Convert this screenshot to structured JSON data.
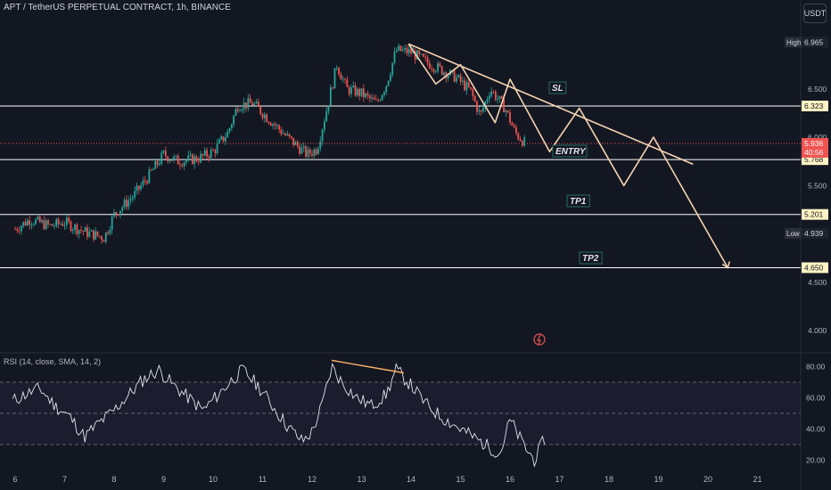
{
  "header": {
    "title": "APT / TetherUS PERPETUAL CONTRACT, 1h, BINANCE",
    "currency": "USDT"
  },
  "annotations": {
    "sl": "SL",
    "entry": "ENTRY",
    "tp1": "TP1",
    "tp2": "TP2",
    "high_label": "High",
    "low_label": "Low"
  },
  "rsi": {
    "title": "RSI (14, close, SMA, 14, 2)"
  },
  "colors": {
    "background": "#131722",
    "bull": "#26a69a",
    "bear": "#ef5350",
    "level_line": "#ffffff",
    "projection": "#f5d3b0",
    "rsi_line": "#e0e3eb",
    "rsi_divergence": "#ffb26b",
    "current_price": "#ef5350"
  },
  "chart_data": [
    {
      "type": "candlestick",
      "x_ticks": [
        "6",
        "7",
        "8",
        "9",
        "10",
        "11",
        "12",
        "13",
        "14",
        "15",
        "16",
        "17",
        "18",
        "19",
        "20",
        "21"
      ],
      "y_ticks": [
        "4.000",
        "4.500",
        "5.000",
        "5.500",
        "6.000",
        "6.500",
        "7.000"
      ],
      "ylim": [
        3.8,
        7.1
      ],
      "price_path": [
        [
          6.0,
          5.05
        ],
        [
          6.3,
          5.15
        ],
        [
          6.7,
          5.08
        ],
        [
          7.0,
          5.12
        ],
        [
          7.4,
          5.02
        ],
        [
          7.8,
          4.96
        ],
        [
          8.0,
          5.2
        ],
        [
          8.4,
          5.4
        ],
        [
          8.7,
          5.6
        ],
        [
          9.0,
          5.82
        ],
        [
          9.3,
          5.75
        ],
        [
          9.7,
          5.78
        ],
        [
          10.0,
          5.85
        ],
        [
          10.3,
          6.05
        ],
        [
          10.5,
          6.33
        ],
        [
          10.8,
          6.35
        ],
        [
          11.2,
          6.15
        ],
        [
          11.5,
          6.0
        ],
        [
          11.9,
          5.82
        ],
        [
          12.1,
          5.88
        ],
        [
          12.3,
          6.3
        ],
        [
          12.5,
          6.75
        ],
        [
          12.7,
          6.5
        ],
        [
          13.0,
          6.45
        ],
        [
          13.3,
          6.35
        ],
        [
          13.5,
          6.55
        ],
        [
          13.7,
          6.9
        ],
        [
          14.0,
          6.88
        ],
        [
          14.3,
          6.78
        ],
        [
          14.6,
          6.7
        ],
        [
          14.9,
          6.62
        ],
        [
          15.2,
          6.48
        ],
        [
          15.4,
          6.22
        ],
        [
          15.6,
          6.5
        ],
        [
          15.9,
          6.3
        ],
        [
          16.1,
          6.05
        ],
        [
          16.3,
          5.94
        ]
      ],
      "current_price": 5.936,
      "countdown": "40:56",
      "high": 6.965,
      "low": 4.939,
      "levels": [
        {
          "name": "SL",
          "price": 6.323,
          "label": "6.323"
        },
        {
          "name": "ENTRY",
          "price": 5.768,
          "label": "5.768"
        },
        {
          "name": "TP1",
          "price": 5.201,
          "label": "5.201"
        },
        {
          "name": "TP2",
          "price": 4.65,
          "label": "4.650"
        }
      ],
      "current_price_label": "5.936",
      "high_value_label": "6.965",
      "low_value_label": "4.939",
      "trendline": [
        [
          13.95,
          6.965
        ],
        [
          19.7,
          5.72
        ]
      ],
      "projection_path": [
        [
          13.95,
          6.965
        ],
        [
          14.5,
          6.55
        ],
        [
          15.0,
          6.75
        ],
        [
          15.7,
          6.15
        ],
        [
          16.0,
          6.6
        ],
        [
          16.8,
          5.85
        ],
        [
          17.4,
          6.3
        ],
        [
          18.3,
          5.5
        ],
        [
          18.9,
          6.0
        ],
        [
          20.4,
          4.65
        ]
      ]
    },
    {
      "type": "line",
      "name": "RSI (14, close, SMA, 14, 2)",
      "ylim": [
        15,
        88
      ],
      "y_ticks": [
        "20.00",
        "40.00",
        "60.00",
        "80.00"
      ],
      "bands": [
        30,
        50,
        70
      ],
      "values": [
        [
          5.95,
          58
        ],
        [
          6.2,
          62
        ],
        [
          6.5,
          66
        ],
        [
          6.8,
          55
        ],
        [
          7.1,
          48
        ],
        [
          7.4,
          35
        ],
        [
          7.7,
          44
        ],
        [
          8.0,
          52
        ],
        [
          8.3,
          62
        ],
        [
          8.6,
          72
        ],
        [
          8.9,
          78
        ],
        [
          9.2,
          68
        ],
        [
          9.5,
          60
        ],
        [
          9.8,
          52
        ],
        [
          10.1,
          62
        ],
        [
          10.4,
          72
        ],
        [
          10.6,
          78
        ],
        [
          10.9,
          68
        ],
        [
          11.2,
          55
        ],
        [
          11.5,
          42
        ],
        [
          11.8,
          32
        ],
        [
          12.0,
          38
        ],
        [
          12.2,
          55
        ],
        [
          12.4,
          80
        ],
        [
          12.6,
          70
        ],
        [
          12.9,
          60
        ],
        [
          13.2,
          55
        ],
        [
          13.5,
          62
        ],
        [
          13.7,
          78
        ],
        [
          14.0,
          68
        ],
        [
          14.3,
          56
        ],
        [
          14.6,
          48
        ],
        [
          14.9,
          42
        ],
        [
          15.2,
          36
        ],
        [
          15.5,
          30
        ],
        [
          15.8,
          24
        ],
        [
          16.0,
          46
        ],
        [
          16.2,
          34
        ],
        [
          16.35,
          26
        ],
        [
          16.5,
          20
        ],
        [
          16.7,
          34
        ]
      ],
      "divergence": [
        [
          12.4,
          84
        ],
        [
          13.85,
          76
        ]
      ]
    }
  ]
}
